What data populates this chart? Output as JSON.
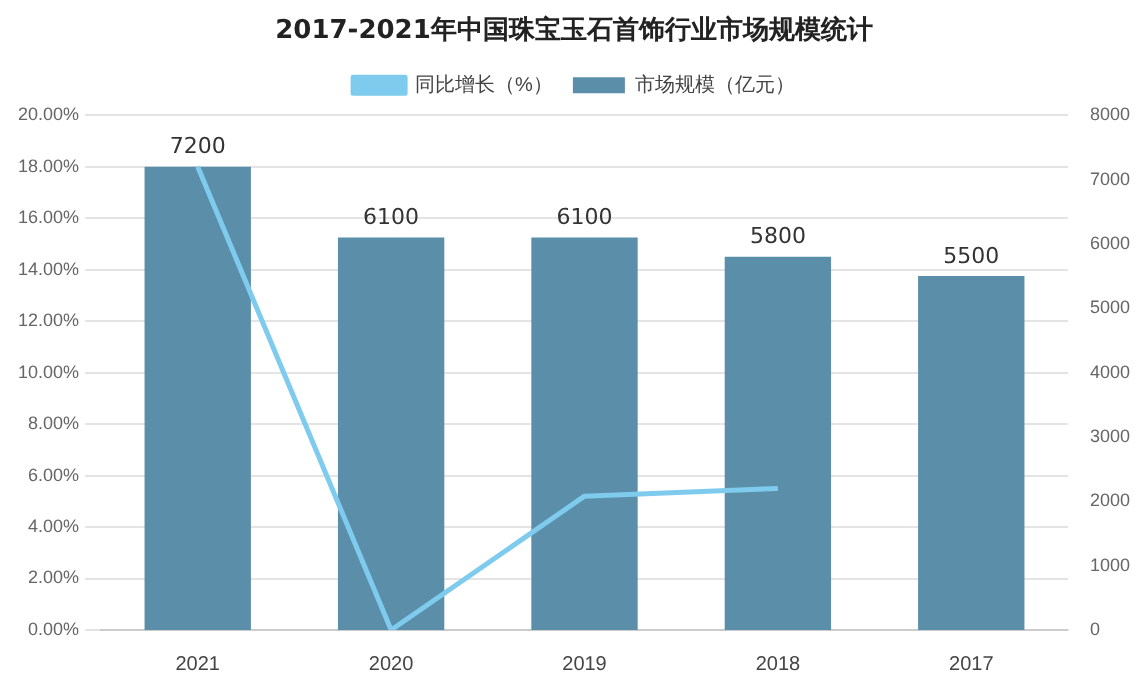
{
  "chart_data": {
    "type": "bar",
    "title": "2017-2021年中国珠宝玉石首饰行业市场规模统计",
    "categories": [
      "2021",
      "2020",
      "2019",
      "2018",
      "2017"
    ],
    "series": [
      {
        "name": "市场规模（亿元）",
        "axis": "y2",
        "color": "#5b8ea8",
        "values": [
          7200,
          6100,
          6100,
          5800,
          5500
        ],
        "value_labels": [
          "7200",
          "6100",
          "6100",
          "5800",
          "5500"
        ]
      },
      {
        "name": "同比增长（%）",
        "type": "line",
        "color": "#7ecbee",
        "values": [
          18.0,
          0,
          5.2,
          5.5,
          null
        ]
      }
    ],
    "ylim": [
      0,
      20
    ],
    "yticks": [
      {
        "value": 0,
        "label": "0.00%"
      },
      {
        "value": 2,
        "label": "2.00%"
      },
      {
        "value": 4,
        "label": "4.00%"
      },
      {
        "value": 6,
        "label": "6.00%"
      },
      {
        "value": 8,
        "label": "8.00%"
      },
      {
        "value": 10,
        "label": "10.00%"
      },
      {
        "value": 12,
        "label": "12.00%"
      },
      {
        "value": 14,
        "label": "14.00%"
      },
      {
        "value": 16,
        "label": "16.00%"
      },
      {
        "value": 18,
        "label": "18.00%"
      },
      {
        "value": 20,
        "label": "20.00%"
      }
    ],
    "y2lim": [
      0,
      8000
    ],
    "y2ticks": [
      0,
      1000,
      2000,
      3000,
      4000,
      5000,
      6000,
      7000,
      8000
    ],
    "grid": "y",
    "legend": "top",
    "marker": "none",
    "line_style": "solid"
  }
}
